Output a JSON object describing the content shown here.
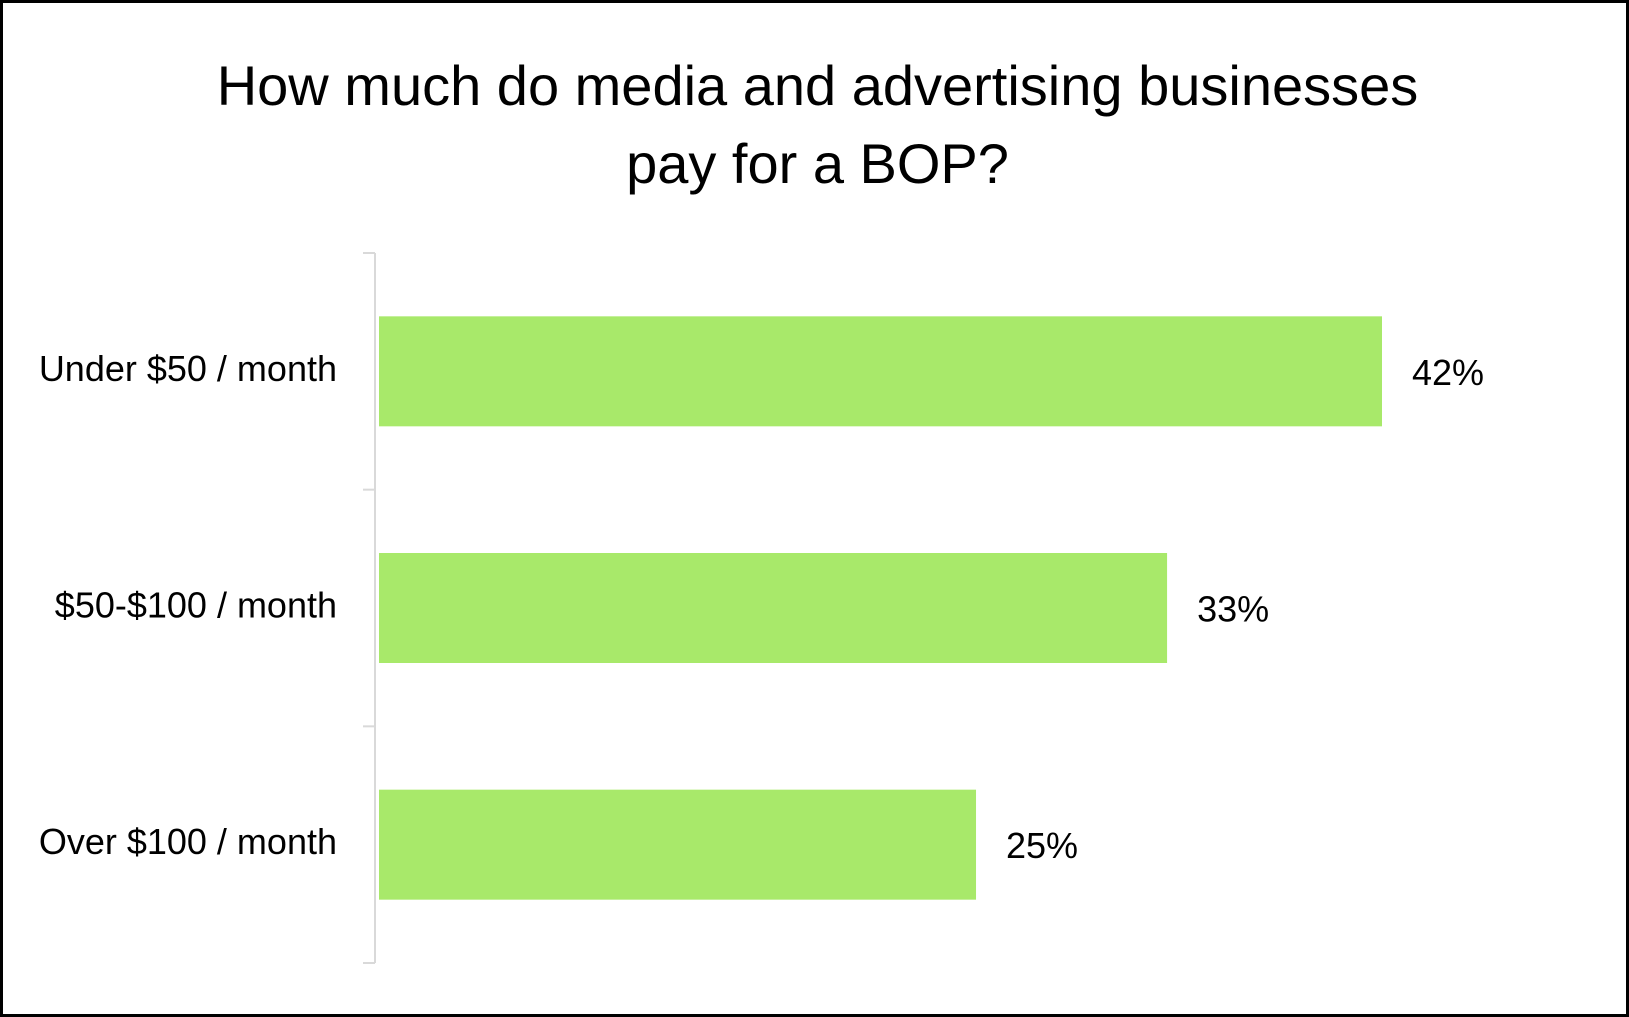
{
  "chart_data": {
    "type": "bar",
    "orientation": "horizontal",
    "title": "How much do media and advertising businesses\npay for a BOP?",
    "categories": [
      "Under $50 / month",
      "$50-$100 / month",
      "Over $100 / month"
    ],
    "values": [
      42,
      33,
      25
    ],
    "value_labels": [
      "42%",
      "33%",
      "25%"
    ],
    "xlim": [
      0,
      50
    ],
    "grid": false,
    "bar_color": "#a8e96a",
    "axis_color": "#d9d9d9"
  }
}
